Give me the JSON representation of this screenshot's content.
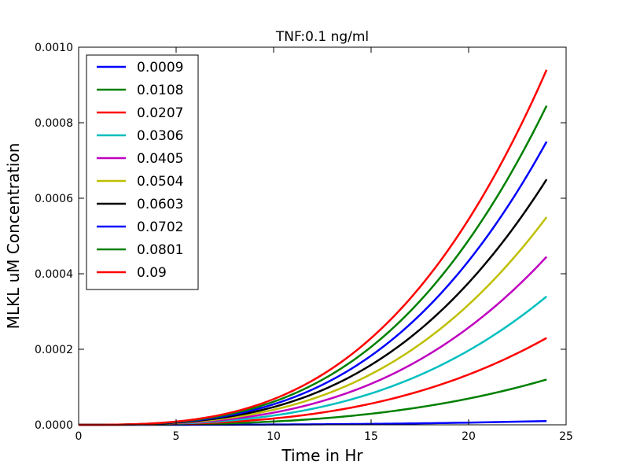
{
  "chart_data": {
    "type": "line",
    "title": "TNF:0.1 ng/ml",
    "xlabel": "Time in Hr",
    "ylabel": "MLKL uM Concentration",
    "xlim": [
      0,
      25
    ],
    "ylim": [
      0,
      0.001
    ],
    "xticks": [
      0,
      5,
      10,
      15,
      20,
      25
    ],
    "xtick_labels": [
      "0",
      "5",
      "10",
      "15",
      "20",
      "25"
    ],
    "yticks": [
      0,
      0.0002,
      0.0004,
      0.0006,
      0.0008,
      0.001
    ],
    "ytick_labels": [
      "0.0000",
      "0.0002",
      "0.0004",
      "0.0006",
      "0.0008",
      "0.0010"
    ],
    "grid": false,
    "legend_position": "top-left",
    "curve_shape": "power",
    "curve_exponent": 3,
    "x": [
      0,
      3,
      6,
      9,
      12,
      15,
      18,
      21,
      24
    ],
    "series": [
      {
        "name": "0.0009",
        "color": "#0000ff",
        "values": [
          0,
          2e-07,
          1.6e-06,
          5.3e-06,
          1.25e-05,
          2.44e-05,
          4.22e-05,
          6.7e-05,
          1e-05
        ]
      },
      {
        "name": "0.0108",
        "color": "#008000",
        "values": [
          0,
          2e-07,
          1.9e-06,
          6.4e-06,
          1.5e-05,
          2.93e-05,
          5.06e-05,
          8.04e-05,
          0.00012
        ]
      },
      {
        "name": "0.0207",
        "color": "#ff0000",
        "values": [
          0,
          4e-07,
          3.6e-06,
          1.23e-05,
          2.88e-05,
          5.62e-05,
          9.7e-05,
          0.000154,
          0.00023
        ]
      },
      {
        "name": "0.0306",
        "color": "#00bfbf",
        "values": [
          0,
          7e-07,
          5.3e-06,
          1.79e-05,
          4.25e-05,
          8.3e-05,
          0.000143,
          0.000228,
          0.00034
        ]
      },
      {
        "name": "0.0405",
        "color": "#bf00bf",
        "values": [
          0,
          9e-07,
          7e-06,
          2.36e-05,
          5.59e-05,
          0.000109,
          0.000189,
          0.0003,
          0.000445
        ]
      },
      {
        "name": "0.0504",
        "color": "#bfbf00",
        "values": [
          0,
          1.1e-06,
          8.6e-06,
          2.9e-05,
          6.88e-05,
          0.000134,
          0.000232,
          0.000369,
          0.00055
        ]
      },
      {
        "name": "0.0603",
        "color": "#000000",
        "values": [
          0,
          1.3e-06,
          1.02e-05,
          3.44e-05,
          8.15e-05,
          0.000159,
          0.000275,
          0.000437,
          0.00065
        ]
      },
      {
        "name": "0.0702",
        "color": "#0000ff",
        "values": [
          0,
          1.5e-06,
          1.17e-05,
          3.96e-05,
          9.39e-05,
          0.000183,
          0.000317,
          0.000503,
          0.00075
        ]
      },
      {
        "name": "0.0801",
        "color": "#008000",
        "values": [
          0,
          1.7e-06,
          1.33e-05,
          4.48e-05,
          0.000106,
          0.000207,
          0.000358,
          0.000569,
          0.000845
        ]
      },
      {
        "name": "0.09",
        "color": "#ff0000",
        "values": [
          0,
          1.9e-06,
          1.48e-05,
          4.99e-05,
          0.000118,
          0.000231,
          0.000399,
          0.000634,
          0.00094
        ]
      }
    ]
  }
}
